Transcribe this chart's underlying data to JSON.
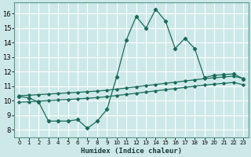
{
  "title": "",
  "xlabel": "Humidex (Indice chaleur)",
  "ylabel": "",
  "bg_color": "#cde8e8",
  "grid_color": "#ffffff",
  "line_color": "#1a6b5a",
  "xlim": [
    -0.5,
    23.5
  ],
  "ylim": [
    7.5,
    16.75
  ],
  "xticks": [
    0,
    1,
    2,
    3,
    4,
    5,
    6,
    7,
    8,
    9,
    10,
    11,
    12,
    13,
    14,
    15,
    16,
    17,
    18,
    19,
    20,
    21,
    22,
    23
  ],
  "yticks": [
    8,
    9,
    10,
    11,
    12,
    13,
    14,
    15,
    16
  ],
  "line_main_x": [
    0,
    1,
    2,
    3,
    4,
    5,
    6,
    7,
    8,
    9,
    10,
    11,
    12,
    13,
    14,
    15,
    16,
    17,
    18,
    19,
    20,
    21,
    22,
    23
  ],
  "line_main_y": [
    10.3,
    10.2,
    9.9,
    8.6,
    8.6,
    8.6,
    8.7,
    8.1,
    8.6,
    9.4,
    11.65,
    14.2,
    15.8,
    15.0,
    16.3,
    15.5,
    13.6,
    14.3,
    13.6,
    11.6,
    11.75,
    11.8,
    11.85,
    11.5
  ],
  "line_upper_x": [
    0,
    1,
    2,
    3,
    4,
    5,
    6,
    7,
    8,
    9,
    10,
    11,
    12,
    13,
    14,
    15,
    16,
    17,
    18,
    19,
    20,
    21,
    22,
    23
  ],
  "line_upper_y": [
    10.35,
    10.38,
    10.42,
    10.46,
    10.5,
    10.54,
    10.58,
    10.62,
    10.67,
    10.72,
    10.8,
    10.88,
    10.96,
    11.04,
    11.12,
    11.2,
    11.28,
    11.36,
    11.44,
    11.52,
    11.58,
    11.64,
    11.7,
    11.52
  ],
  "line_lower_x": [
    0,
    1,
    2,
    3,
    4,
    5,
    6,
    7,
    8,
    9,
    10,
    11,
    12,
    13,
    14,
    15,
    16,
    17,
    18,
    19,
    20,
    21,
    22,
    23
  ],
  "line_lower_y": [
    9.9,
    9.93,
    9.97,
    10.01,
    10.05,
    10.09,
    10.13,
    10.17,
    10.22,
    10.28,
    10.36,
    10.44,
    10.52,
    10.6,
    10.68,
    10.76,
    10.84,
    10.92,
    11.0,
    11.08,
    11.14,
    11.2,
    11.26,
    11.1
  ]
}
